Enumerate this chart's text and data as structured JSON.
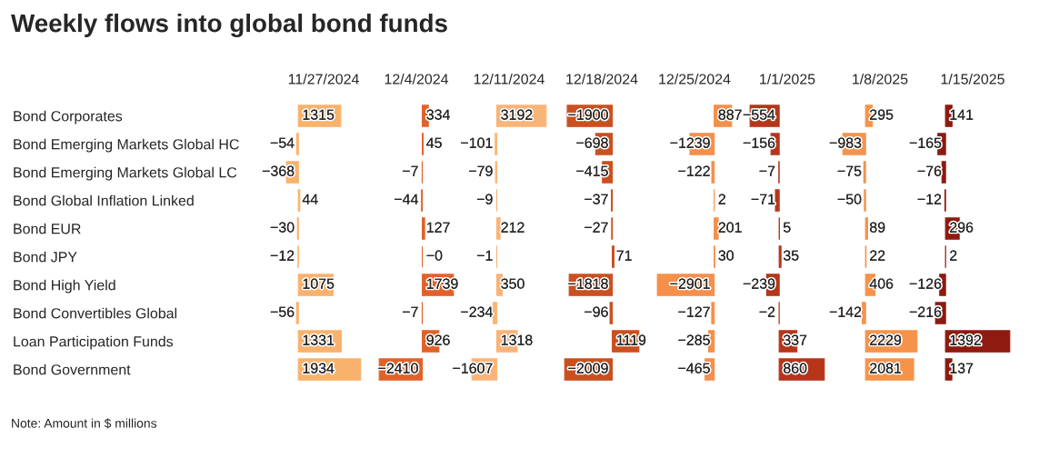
{
  "chart_data": [
    {
      "type": "other",
      "title": "Weekly flows into global bond funds",
      "annotations": [
        "Note: Amount in $ millions"
      ]
    },
    {
      "type": "bar",
      "orientation": "horizontal",
      "title": "11/27/2024",
      "tick_labels": "y",
      "color": "#f9b26c",
      "categories": [
        "Bond Corporates",
        "Bond Emerging Markets Global HC",
        "Bond Emerging Markets Global LC",
        "Bond Global Inflation Linked",
        "Bond EUR",
        "Bond JPY",
        "Bond High Yield",
        "Bond Convertibles Global",
        "Loan Participation Funds",
        "Bond Government"
      ],
      "values": [
        1315,
        -54,
        -368,
        44,
        -30,
        -12,
        1075,
        -56,
        1331,
        1934
      ],
      "value_labels": [
        "1315",
        "−54",
        "−368",
        "44",
        "−30",
        "−12",
        "1075",
        "−56",
        "1331",
        "1934"
      ]
    },
    {
      "type": "bar",
      "orientation": "horizontal",
      "title": "12/4/2024",
      "tick_labels": false,
      "color": "#e0622a",
      "values": [
        334,
        45,
        -7,
        -44,
        127,
        0,
        1739,
        -7,
        926,
        -2410
      ],
      "value_labels": [
        "334",
        "45",
        "−7",
        "−44",
        "127",
        "−0",
        "1739",
        "−7",
        "926",
        "−2410"
      ]
    },
    {
      "type": "bar",
      "orientation": "horizontal",
      "title": "12/11/2024",
      "tick_labels": false,
      "color": "#fbb477",
      "values": [
        3192,
        -101,
        -79,
        -9,
        212,
        -1,
        350,
        -234,
        1318,
        -1607
      ],
      "value_labels": [
        "3192",
        "−101",
        "−79",
        "−9",
        "212",
        "−1",
        "350",
        "−234",
        "1318",
        "−1607"
      ]
    },
    {
      "type": "bar",
      "orientation": "horizontal",
      "title": "12/18/2024",
      "tick_labels": false,
      "color": "#c9501f",
      "values": [
        -1900,
        -698,
        -415,
        -37,
        -27,
        71,
        -1818,
        -96,
        1119,
        -2009
      ],
      "value_labels": [
        "−1900",
        "−698",
        "−415",
        "−37",
        "−27",
        "71",
        "−1818",
        "−96",
        "1119",
        "−2009"
      ]
    },
    {
      "type": "bar",
      "orientation": "horizontal",
      "title": "12/25/2024",
      "tick_labels": false,
      "color": "#f58f4a",
      "values": [
        887,
        -1239,
        -122,
        2,
        201,
        30,
        -2901,
        -127,
        -285,
        -465
      ],
      "value_labels": [
        "887",
        "−1239",
        "−122",
        "2",
        "201",
        "30",
        "−2901",
        "−127",
        "−285",
        "−465"
      ]
    },
    {
      "type": "bar",
      "orientation": "horizontal",
      "title": "1/1/2025",
      "tick_labels": false,
      "color": "#b5361a",
      "values": [
        -554,
        -156,
        -7,
        -71,
        5,
        35,
        -239,
        -2,
        337,
        860
      ],
      "value_labels": [
        "−554",
        "−156",
        "−7",
        "−71",
        "5",
        "35",
        "−239",
        "−2",
        "337",
        "860"
      ]
    },
    {
      "type": "bar",
      "orientation": "horizontal",
      "title": "1/8/2025",
      "tick_labels": false,
      "color": "#f6934b",
      "values": [
        295,
        -983,
        -75,
        -50,
        89,
        22,
        406,
        -142,
        2229,
        2081
      ],
      "value_labels": [
        "295",
        "−983",
        "−75",
        "−50",
        "89",
        "22",
        "406",
        "−142",
        "2229",
        "2081"
      ]
    },
    {
      "type": "bar",
      "orientation": "horizontal",
      "title": "1/15/2025",
      "tick_labels": false,
      "color": "#8e1a10",
      "values": [
        141,
        -165,
        -76,
        -12,
        296,
        2,
        -126,
        -216,
        1392,
        137
      ],
      "value_labels": [
        "141",
        "−165",
        "−76",
        "−12",
        "296",
        "2",
        "−126",
        "−216",
        "1392",
        "137"
      ]
    }
  ]
}
